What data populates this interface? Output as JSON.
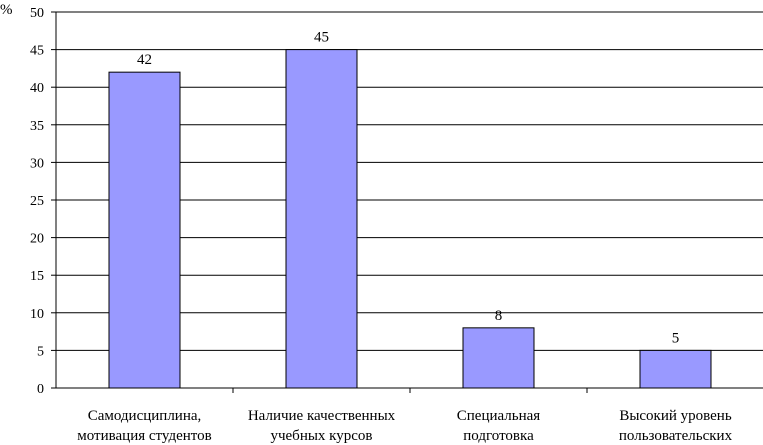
{
  "chart_data": {
    "type": "bar",
    "categories": [
      [
        "Самодисциплина,",
        "мотивация студентов"
      ],
      [
        "Наличие качественных",
        "учебных курсов"
      ],
      [
        "Специальная",
        "подготовка"
      ],
      [
        "Высокий уровень",
        "пользовательских"
      ]
    ],
    "values": [
      42,
      45,
      8,
      5
    ],
    "ylabel": "%",
    "ylim": [
      0,
      50
    ],
    "yticks": [
      "0",
      "5",
      "10",
      "15",
      "20",
      "25",
      "30",
      "35",
      "40",
      "45",
      "50"
    ],
    "data_labels": [
      "42",
      "45",
      "8",
      "5"
    ],
    "grid": true,
    "legend": "none",
    "colors": {
      "bar": "#9999ff",
      "bar_border": "#000000",
      "grid": "#000000"
    }
  }
}
